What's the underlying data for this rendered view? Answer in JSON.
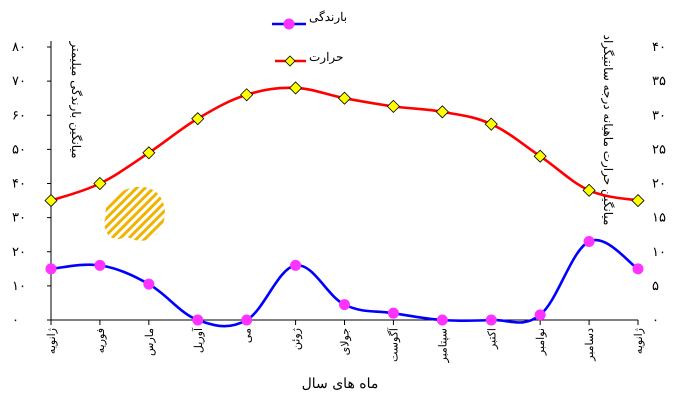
{
  "chart_data": {
    "type": "line",
    "categories": [
      "ژانویه",
      "فوریه",
      "مارس",
      "آوریل",
      "می",
      "ژوئن",
      "جولای",
      "آگوست",
      "سپتامبر",
      "اکتبر",
      "نوامبر",
      "دسامبر",
      "ژانویه"
    ],
    "series": [
      {
        "name": "بارندگی",
        "axis": "left",
        "color": "#0000ff",
        "marker": "circle",
        "marker_color": "#ff33ff",
        "values": [
          15,
          16,
          10.5,
          0,
          0,
          16,
          4.5,
          2,
          0,
          0,
          1.5,
          23,
          15
        ]
      },
      {
        "name": "حرارت",
        "axis": "right",
        "color": "#ff0000",
        "marker": "diamond",
        "marker_color": "#ffff00",
        "values": [
          17.5,
          20,
          24.5,
          29.5,
          33,
          34,
          32.5,
          31.3,
          30.5,
          28.7,
          24,
          19,
          17.5
        ]
      }
    ],
    "y_left": {
      "label": "میانگین بارندگی میلیمتر",
      "ylim": [
        0,
        80
      ],
      "ticks": [
        "۰",
        "۱۰",
        "۲۰",
        "۳۰",
        "۴۰",
        "۵۰",
        "۶۰",
        "۷۰",
        "۸۰"
      ]
    },
    "y_right": {
      "label": "میانگین حرارت ماهیانه درجه سانتیگراد",
      "ylim": [
        0,
        40
      ],
      "ticks": [
        "۰",
        "۵",
        "۱۰",
        "۱۵",
        "۲۰",
        "۲۵",
        "۳۰",
        "۳۵",
        "۴۰"
      ]
    },
    "xlabel": "ماه های سال",
    "legend_position": "top-center",
    "grid": false,
    "colors": {
      "precip_line": "#0000ff",
      "precip_marker": "#ff33ff",
      "temp_line": "#ff0000",
      "temp_marker": "#ffff00",
      "stamp": "#f0b400"
    }
  }
}
